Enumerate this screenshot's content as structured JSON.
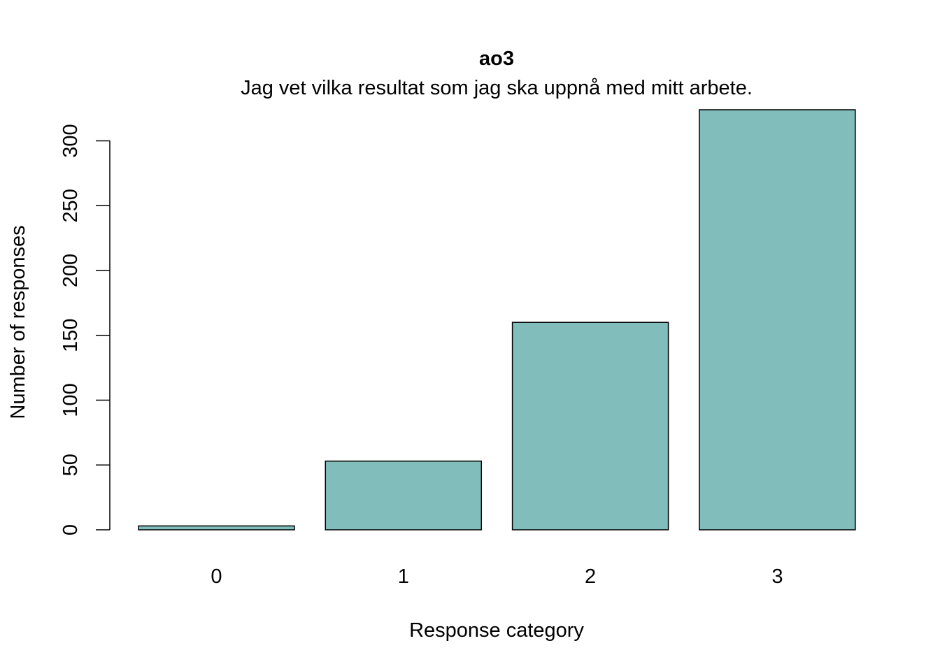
{
  "chart_data": {
    "type": "bar",
    "title": "ao3",
    "subtitle": "Jag vet vilka resultat som jag ska uppnå med mitt arbete.",
    "xlabel": "Response category",
    "ylabel": "Number of responses",
    "categories": [
      "0",
      "1",
      "2",
      "3"
    ],
    "values": [
      3,
      53,
      160,
      324
    ],
    "ylim": [
      0,
      324
    ],
    "yticks": [
      0,
      50,
      100,
      150,
      200,
      250,
      300
    ],
    "grid": false,
    "bar_color": "#80bdbb",
    "bar_stroke": "#000000"
  }
}
